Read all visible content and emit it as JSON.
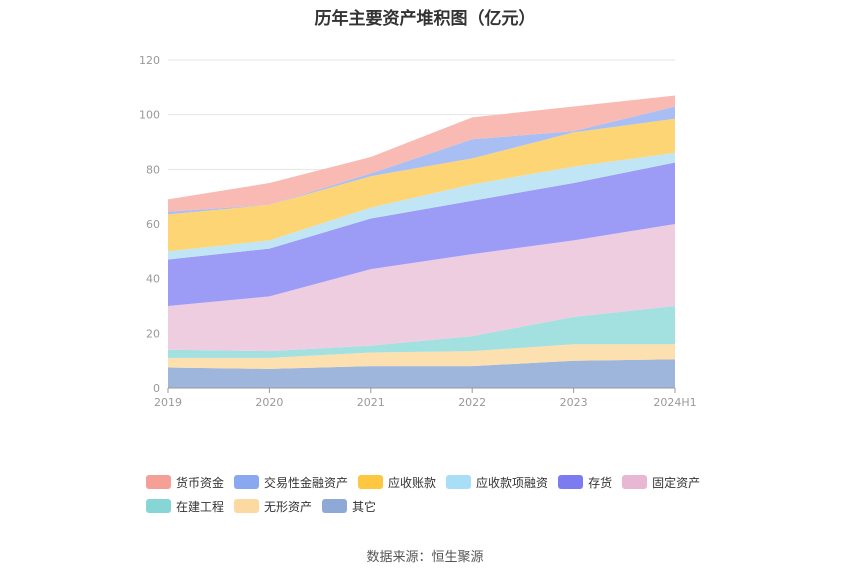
{
  "title": "历年主要资产堆积图（亿元）",
  "source": "数据来源：恒生聚源",
  "chart_data": {
    "type": "area",
    "stacked": true,
    "categories": [
      "2019",
      "2020",
      "2021",
      "2022",
      "2023",
      "2024H1"
    ],
    "ylim": [
      0,
      120
    ],
    "yticks": [
      0,
      20,
      40,
      60,
      80,
      100,
      120
    ],
    "grid": true,
    "legend_position": "bottom",
    "series": [
      {
        "name": "其它",
        "color": "#9fb6dc",
        "values": [
          7.5,
          7,
          8,
          8,
          10,
          10.5
        ]
      },
      {
        "name": "无形资产",
        "color": "#fde0b0",
        "values": [
          3.5,
          4,
          5,
          5.5,
          6,
          5.5
        ]
      },
      {
        "name": "在建工程",
        "color": "#a3e0e0",
        "values": [
          3,
          2.5,
          2.5,
          5.5,
          10,
          14
        ]
      },
      {
        "name": "固定资产",
        "color": "#eecde0",
        "values": [
          16,
          20,
          28,
          30,
          28,
          30
        ]
      },
      {
        "name": "存货",
        "color": "#9c9cf6",
        "values": [
          17,
          17.5,
          18.5,
          19.5,
          21,
          22.5
        ]
      },
      {
        "name": "应收款项融资",
        "color": "#c0e6f6",
        "values": [
          3,
          3,
          4,
          6,
          6,
          3.5
        ]
      },
      {
        "name": "应收账款",
        "color": "#fed574",
        "values": [
          13.5,
          13,
          11.5,
          9.5,
          12.5,
          12.5
        ]
      },
      {
        "name": "交易性金融资产",
        "color": "#a9bff4",
        "values": [
          1,
          0,
          1,
          7,
          0.5,
          4.5
        ]
      },
      {
        "name": "货币资金",
        "color": "#f9bab4",
        "values": [
          4.5,
          8,
          6,
          8,
          9,
          4
        ]
      }
    ]
  },
  "legend": {
    "rows": [
      [
        {
          "label": "货币资金",
          "color": "#f4a097"
        },
        {
          "label": "交易性金融资产",
          "color": "#8aa8f0"
        },
        {
          "label": "应收账款",
          "color": "#fdc741"
        },
        {
          "label": "应收款项融资",
          "color": "#a8def6"
        },
        {
          "label": "存货",
          "color": "#7c7cf0"
        },
        {
          "label": "固定资产",
          "color": "#e8b7d4"
        }
      ],
      [
        {
          "label": "在建工程",
          "color": "#86d6d6"
        },
        {
          "label": "无形资产",
          "color": "#fdd9a2"
        },
        {
          "label": "其它",
          "color": "#8fa9d6"
        }
      ]
    ]
  }
}
